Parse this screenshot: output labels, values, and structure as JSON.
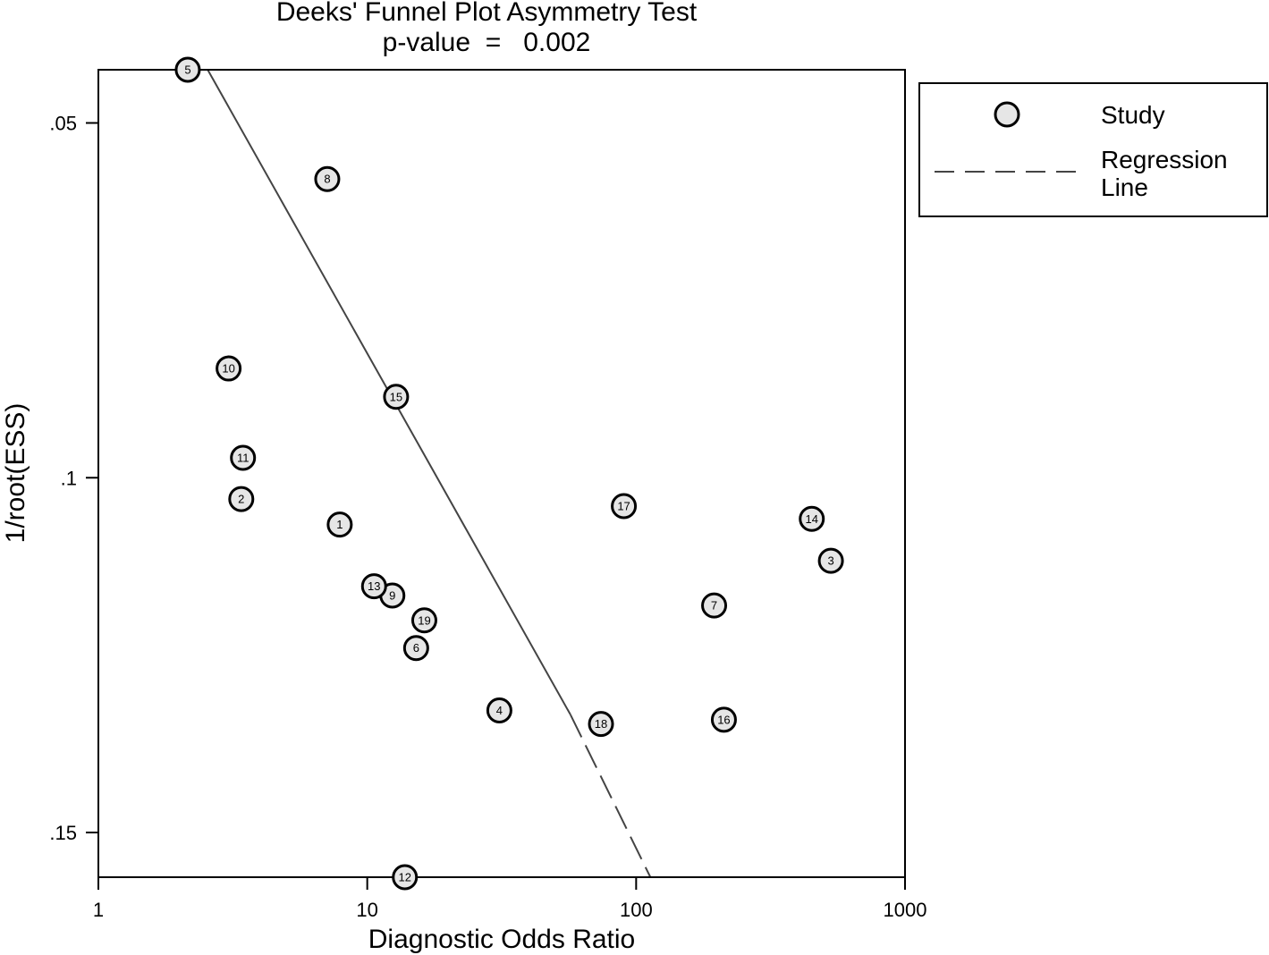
{
  "chart_data": {
    "type": "scatter",
    "title": "Deeks' Funnel Plot Asymmetry Test",
    "subtitle": "p-value  =   0.002",
    "xlabel": "Diagnostic Odds Ratio",
    "ylabel": "1/root(ESS)",
    "x_scale": "log",
    "y_reversed": true,
    "xlim": [
      1,
      1000
    ],
    "ylim": [
      0.0425,
      0.1563
    ],
    "x_ticks": [
      {
        "value": 1,
        "label": "1"
      },
      {
        "value": 10,
        "label": "10"
      },
      {
        "value": 100,
        "label": "100"
      },
      {
        "value": 1000,
        "label": "1000"
      }
    ],
    "y_ticks": [
      {
        "value": 0.05,
        "label": ".05"
      },
      {
        "value": 0.1,
        "label": ".1"
      },
      {
        "value": 0.15,
        "label": ".15"
      }
    ],
    "legend": {
      "placement": "right",
      "entries": [
        {
          "label": "Study",
          "marker": "circle"
        },
        {
          "label_line1": "Regression",
          "label_line2": "Line",
          "marker": "dashed-line"
        }
      ]
    },
    "points": [
      {
        "id": "1",
        "x": 7.9,
        "y": 0.1066
      },
      {
        "id": "2",
        "x": 3.4,
        "y": 0.103
      },
      {
        "id": "3",
        "x": 530,
        "y": 0.1117
      },
      {
        "id": "4",
        "x": 31,
        "y": 0.1328
      },
      {
        "id": "5",
        "x": 2.15,
        "y": 0.0425
      },
      {
        "id": "6",
        "x": 15.2,
        "y": 0.124
      },
      {
        "id": "7",
        "x": 195,
        "y": 0.118
      },
      {
        "id": "8",
        "x": 7.1,
        "y": 0.0579
      },
      {
        "id": "9",
        "x": 12.4,
        "y": 0.1166
      },
      {
        "id": "10",
        "x": 3.05,
        "y": 0.0846
      },
      {
        "id": "11",
        "x": 3.45,
        "y": 0.0972
      },
      {
        "id": "12",
        "x": 13.8,
        "y": 0.1563
      },
      {
        "id": "13",
        "x": 10.6,
        "y": 0.1153
      },
      {
        "id": "14",
        "x": 450,
        "y": 0.1058
      },
      {
        "id": "15",
        "x": 12.8,
        "y": 0.0886
      },
      {
        "id": "16",
        "x": 212,
        "y": 0.1341
      },
      {
        "id": "17",
        "x": 90,
        "y": 0.104
      },
      {
        "id": "18",
        "x": 74,
        "y": 0.1347
      },
      {
        "id": "19",
        "x": 16.3,
        "y": 0.1201
      }
    ],
    "regression_line": {
      "start": {
        "x": 2.55,
        "y": 0.0425
      },
      "solid_end": {
        "x": 57,
        "y": 0.1334
      },
      "end": {
        "x": 113,
        "y": 0.1563
      }
    }
  }
}
